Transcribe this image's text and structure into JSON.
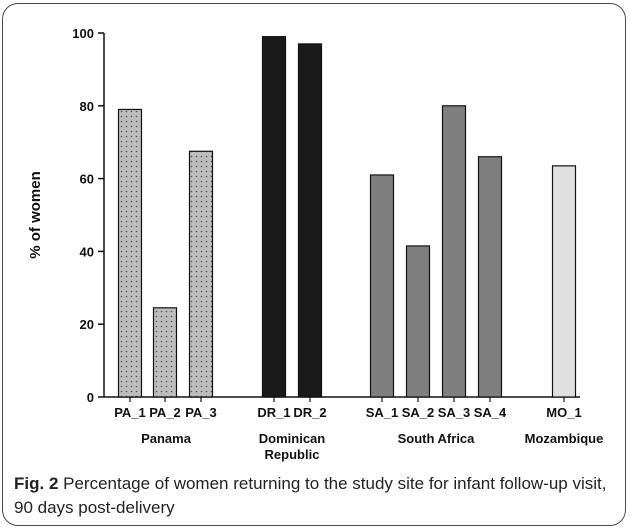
{
  "chart_data": {
    "type": "bar",
    "ylabel": "% of women",
    "ylim": [
      0,
      100
    ],
    "yticks": [
      0,
      20,
      40,
      60,
      80,
      100
    ],
    "bars": [
      {
        "label": "PA_1",
        "value": 79,
        "group": "Panama"
      },
      {
        "label": "PA_2",
        "value": 24.5,
        "group": "Panama"
      },
      {
        "label": "PA_3",
        "value": 67.5,
        "group": "Panama"
      },
      {
        "label": "DR_1",
        "value": 99,
        "group": "Dominican Republic"
      },
      {
        "label": "DR_2",
        "value": 97,
        "group": "Dominican Republic"
      },
      {
        "label": "SA_1",
        "value": 61,
        "group": "South Africa"
      },
      {
        "label": "SA_2",
        "value": 41.5,
        "group": "South Africa"
      },
      {
        "label": "SA_3",
        "value": 80,
        "group": "South Africa"
      },
      {
        "label": "SA_4",
        "value": 66,
        "group": "South Africa"
      },
      {
        "label": "MO_1",
        "value": 63.5,
        "group": "Mozambique"
      }
    ],
    "groups": [
      {
        "name": "Panama",
        "label_lines": [
          "Panama"
        ]
      },
      {
        "name": "Dominican Republic",
        "label_lines": [
          "Dominican",
          "Republic"
        ]
      },
      {
        "name": "South Africa",
        "label_lines": [
          "South Africa"
        ]
      },
      {
        "name": "Mozambique",
        "label_lines": [
          "Mozambique"
        ]
      }
    ],
    "group_styles": {
      "Panama": {
        "fill": "#bdbdbd",
        "pattern": "dots"
      },
      "Dominican Republic": {
        "fill": "#1a1a1a",
        "pattern": "none"
      },
      "South Africa": {
        "fill": "#7f7f7f",
        "pattern": "none"
      },
      "Mozambique": {
        "fill": "#e0e0e0",
        "pattern": "none"
      }
    }
  },
  "caption": {
    "label": "Fig. 2",
    "text": " Percentage of women returning to the study site for infant follow-up visit, 90 days post-delivery"
  }
}
